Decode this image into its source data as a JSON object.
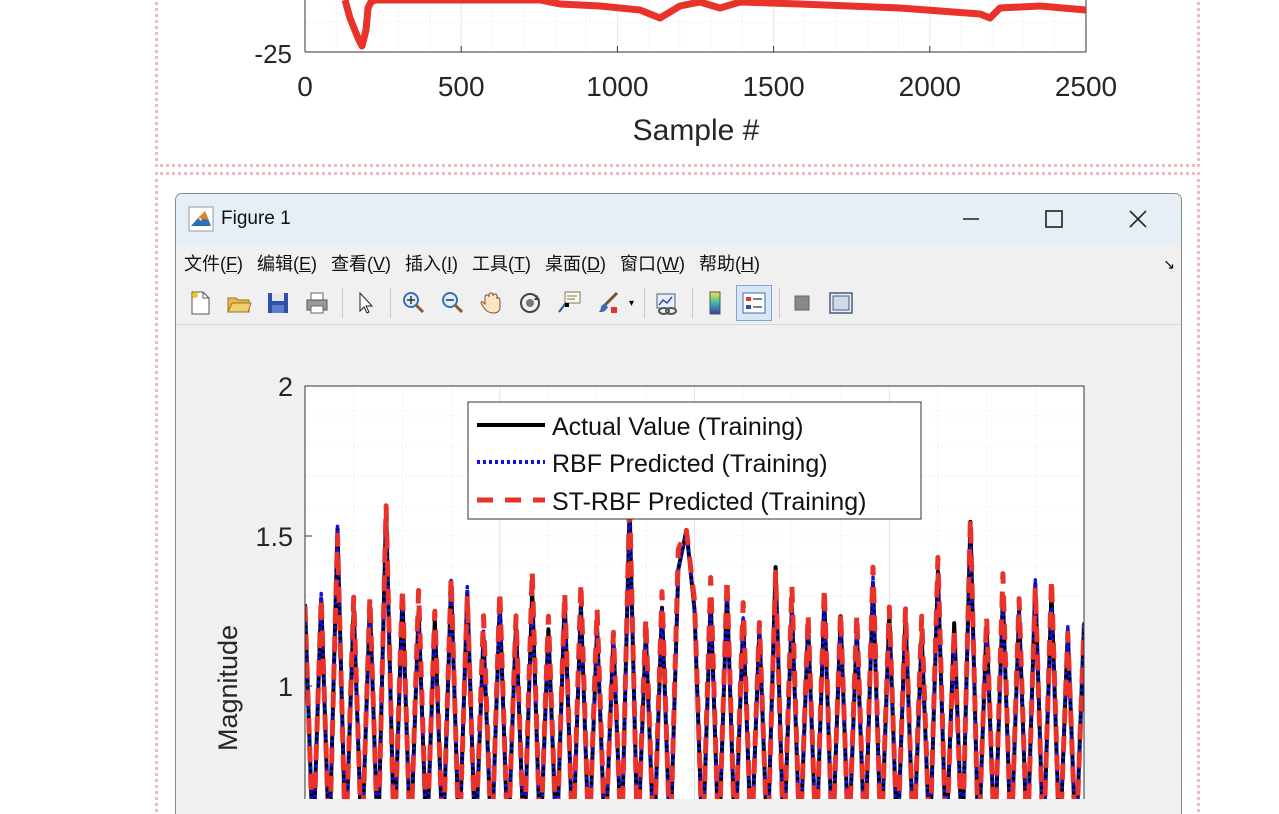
{
  "top_chart": {
    "xlabel": "Sample #",
    "ytick_bottom": "-25",
    "x_ticks": [
      {
        "value": 0,
        "label": "0"
      },
      {
        "value": 500,
        "label": "500"
      },
      {
        "value": 1000,
        "label": "1000"
      },
      {
        "value": 1500,
        "label": "1500"
      },
      {
        "value": 2000,
        "label": "2000"
      },
      {
        "value": 2500,
        "label": "2500"
      }
    ],
    "color": "#e8322a"
  },
  "window": {
    "title": "Figure 1",
    "controls": [
      "minimize-icon",
      "maximize-icon",
      "close-icon"
    ]
  },
  "menu": [
    {
      "text": "文件(",
      "key": "F",
      "end": ")"
    },
    {
      "text": "编辑(",
      "key": "E",
      "end": ")"
    },
    {
      "text": "查看(",
      "key": "V",
      "end": ")"
    },
    {
      "text": "插入(",
      "key": "I",
      "end": ")"
    },
    {
      "text": "工具(",
      "key": "T",
      "end": ")"
    },
    {
      "text": "桌面(",
      "key": "D",
      "end": ")"
    },
    {
      "text": "窗口(",
      "key": "W",
      "end": ")"
    },
    {
      "text": "帮助(",
      "key": "H",
      "end": ")"
    }
  ],
  "toolbar": [
    "new-figure-icon",
    "open-file-icon",
    "save-icon",
    "print-icon",
    "select-arrow-icon",
    "zoom-in-icon",
    "zoom-out-icon",
    "pan-hand-icon",
    "rotate-3d-icon",
    "data-tips-icon",
    "brush-icon",
    "link-plot-icon",
    "colorbar-icon",
    "legend-icon",
    "hide-plot-tools-icon",
    "show-plot-tools-icon"
  ],
  "chart_data": {
    "type": "line",
    "ylabel": "Magnitude",
    "y_ticks": [
      {
        "value": 2,
        "label": "2"
      },
      {
        "value": 1.5,
        "label": "1.5"
      },
      {
        "value": 1,
        "label": "1"
      }
    ],
    "ylim_visible": [
      0.62,
      2
    ],
    "grid": true,
    "legend_position": "top-center",
    "series": [
      {
        "name": "Actual Value (Training)",
        "color": "#000000",
        "style": "solid"
      },
      {
        "name": "RBF Predicted (Training)",
        "color": "#1010e0",
        "style": "dotted"
      },
      {
        "name": "ST-RBF Predicted (Training)",
        "color": "#e8322a",
        "style": "dashed"
      }
    ]
  }
}
